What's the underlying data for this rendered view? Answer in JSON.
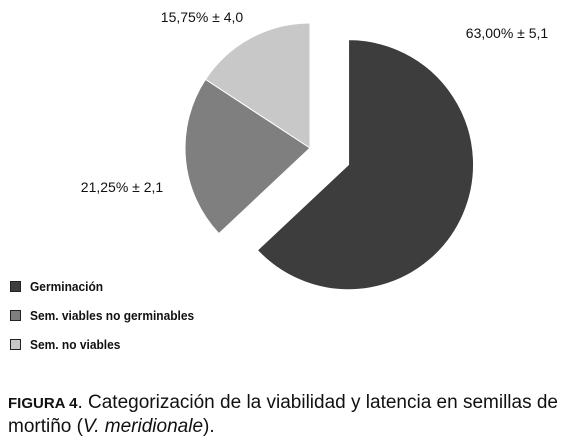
{
  "chart_data": {
    "type": "pie",
    "categories": [
      "Germinación",
      "Sem. viables no germinables",
      "Sem. no viables"
    ],
    "values": [
      63.0,
      21.25,
      15.75
    ],
    "errors": [
      5.1,
      2.1,
      4.0
    ],
    "slice_labels": [
      "63,00% ± 5,1",
      "21,25% ± 2,1",
      "15,75% ± 4,0"
    ],
    "colors": [
      "#3d3d3d",
      "#7f7f7f",
      "#c8c8c8"
    ],
    "exploded": "Germinación",
    "legend_position": "bottom-left"
  },
  "legend": {
    "items": [
      {
        "label": "Germinación",
        "color": "#3d3d3d"
      },
      {
        "label": "Sem. viables no germinables",
        "color": "#7f7f7f"
      },
      {
        "label": "Sem. no viables",
        "color": "#c8c8c8"
      }
    ]
  },
  "caption": {
    "figure_label": "FIGURA 4",
    "text_before": ". Categorización de la viabilidad y latencia en semillas de mortiño (",
    "species": "V. meridionale",
    "text_after": ")."
  }
}
